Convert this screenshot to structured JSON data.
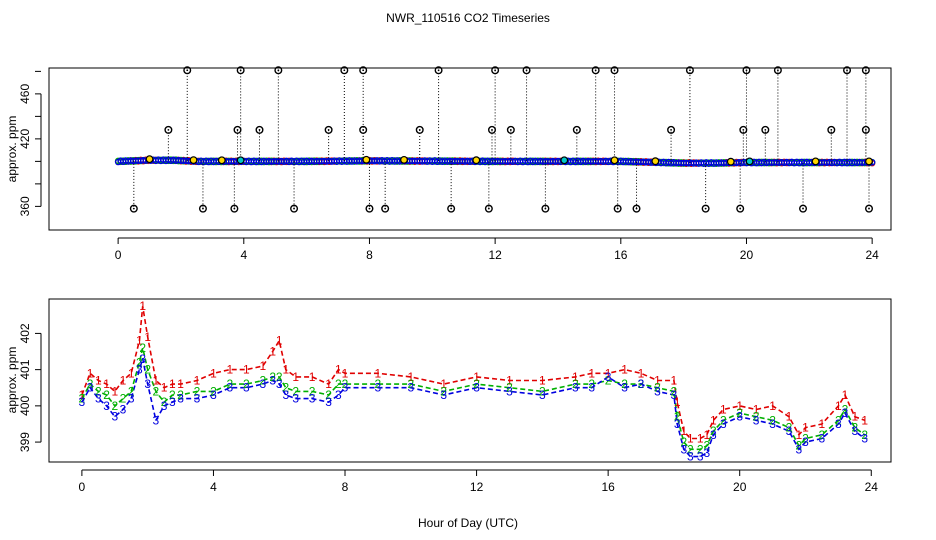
{
  "figure": {
    "title": "NWR_110516  CO2 Timeseries",
    "shared_xlabel": "Hour of Day (UTC)"
  },
  "colors": {
    "axis": "#000000",
    "series1": "#e00000",
    "series2": "#00b000",
    "series3": "#0000e0",
    "flag_fill": "#ffd700",
    "flag_cyan": "#00c8c8",
    "drop": "#000000"
  },
  "chart_data": [
    {
      "type": "scatter",
      "panel": "top",
      "title": "",
      "xlabel": "",
      "ylabel": "approx. ppm",
      "xlim": [
        -2.2,
        24.6
      ],
      "ylim": [
        339,
        483
      ],
      "xticks": [
        0,
        4,
        8,
        12,
        16,
        20,
        24
      ],
      "yticks": [
        360,
        420,
        460
      ],
      "yticklabels": [
        "360",
        "420",
        "460"
      ],
      "baseline": [
        {
          "x": 0.0,
          "y": 400
        },
        {
          "x": 1.0,
          "y": 401
        },
        {
          "x": 1.8,
          "y": 401
        },
        {
          "x": 2.5,
          "y": 400
        },
        {
          "x": 4.0,
          "y": 400
        },
        {
          "x": 6.0,
          "y": 400
        },
        {
          "x": 8.0,
          "y": 400.5
        },
        {
          "x": 12.0,
          "y": 400
        },
        {
          "x": 16.0,
          "y": 400
        },
        {
          "x": 18.0,
          "y": 398.5
        },
        {
          "x": 19.0,
          "y": 398.5
        },
        {
          "x": 20.0,
          "y": 399
        },
        {
          "x": 22.0,
          "y": 399
        },
        {
          "x": 24.0,
          "y": 399
        }
      ],
      "outliers_high": [
        2.2,
        3.9,
        5.1,
        7.2,
        7.8,
        10.2,
        12.0,
        13.0,
        15.2,
        15.8,
        18.2,
        20.0,
        21.0,
        23.2,
        23.8
      ],
      "outliers_high_value": 481,
      "outliers_mid": [
        1.6,
        3.8,
        4.5,
        6.7,
        7.8,
        9.6,
        11.9,
        12.5,
        14.6,
        17.6,
        19.9,
        20.6,
        22.7,
        23.8
      ],
      "outliers_mid_value": 428,
      "outliers_low": [
        0.5,
        2.7,
        3.7,
        5.6,
        8.0,
        8.5,
        10.6,
        11.8,
        13.6,
        15.9,
        16.5,
        18.7,
        19.8,
        21.8,
        23.9
      ],
      "outliers_low_value": 358,
      "flags_near_base": [
        1.0,
        2.4,
        3.3,
        3.9,
        7.9,
        9.1,
        11.4,
        14.2,
        15.8,
        17.1,
        19.5,
        20.1,
        22.2,
        23.9
      ]
    },
    {
      "type": "line",
      "panel": "bottom",
      "title": "",
      "xlabel": "",
      "ylabel": "approx. ppm",
      "xlim": [
        -1.0,
        24.6
      ],
      "ylim": [
        398.45,
        402.95
      ],
      "xticks": [
        0,
        4,
        8,
        12,
        16,
        20,
        24
      ],
      "yticks": [
        399,
        400,
        401,
        402
      ],
      "series": [
        {
          "marker": "1",
          "x": [
            0,
            0.25,
            0.5,
            0.75,
            1,
            1.25,
            1.5,
            1.75,
            1.85,
            2,
            2.25,
            2.5,
            2.75,
            3,
            3.5,
            4,
            4.5,
            5,
            5.5,
            5.8,
            6,
            6.2,
            6.5,
            7,
            7.5,
            7.8,
            8,
            9,
            10,
            11,
            12,
            13,
            14,
            15,
            15.5,
            16,
            16.5,
            17,
            17.5,
            18,
            18.1,
            18.3,
            18.5,
            18.8,
            19,
            19.2,
            19.5,
            20,
            20.5,
            21,
            21.5,
            21.8,
            22,
            22.5,
            23,
            23.2,
            23.5,
            23.8
          ],
          "y": [
            400.3,
            400.9,
            400.7,
            400.6,
            400.4,
            400.7,
            400.9,
            401.8,
            402.75,
            401.9,
            400.7,
            400.5,
            400.6,
            400.6,
            400.7,
            400.9,
            401.0,
            401.0,
            401.1,
            401.5,
            401.8,
            401.0,
            400.8,
            400.8,
            400.6,
            401.0,
            400.9,
            400.9,
            400.8,
            400.6,
            400.8,
            400.7,
            400.7,
            400.8,
            400.9,
            400.9,
            401.0,
            400.9,
            400.7,
            400.7,
            400.1,
            399.3,
            399.1,
            399.1,
            399.2,
            399.6,
            399.9,
            400.0,
            399.9,
            400.0,
            399.7,
            399.2,
            399.4,
            399.5,
            400.0,
            400.3,
            399.7,
            399.6
          ]
        },
        {
          "marker": "2",
          "x": [
            0,
            0.25,
            0.5,
            0.75,
            1,
            1.25,
            1.5,
            1.75,
            1.85,
            2,
            2.25,
            2.5,
            2.75,
            3,
            3.5,
            4,
            4.5,
            5,
            5.5,
            5.8,
            6,
            6.2,
            6.5,
            7,
            7.5,
            7.8,
            8,
            9,
            10,
            11,
            12,
            13,
            14,
            15,
            15.5,
            16,
            16.5,
            17,
            17.5,
            18,
            18.1,
            18.3,
            18.5,
            18.8,
            19,
            19.2,
            19.5,
            20,
            20.5,
            21,
            21.5,
            21.8,
            22,
            22.5,
            23,
            23.2,
            23.5,
            23.8
          ],
          "y": [
            400.2,
            400.6,
            400.4,
            400.3,
            400.0,
            400.2,
            400.4,
            401.2,
            401.6,
            401.0,
            400.4,
            400.1,
            400.3,
            400.3,
            400.4,
            400.4,
            400.6,
            400.6,
            400.7,
            400.8,
            400.8,
            400.5,
            400.4,
            400.4,
            400.3,
            400.6,
            400.6,
            400.6,
            400.6,
            400.4,
            400.6,
            400.5,
            400.4,
            400.6,
            400.6,
            400.7,
            400.6,
            400.6,
            400.5,
            400.4,
            399.7,
            399.0,
            398.8,
            398.8,
            398.9,
            399.3,
            399.6,
            399.8,
            399.7,
            399.6,
            399.4,
            398.9,
            399.1,
            399.2,
            399.6,
            399.9,
            399.4,
            399.2
          ]
        },
        {
          "marker": "3",
          "x": [
            0,
            0.25,
            0.5,
            0.75,
            1,
            1.25,
            1.5,
            1.75,
            1.85,
            2,
            2.25,
            2.5,
            2.75,
            3,
            3.5,
            4,
            4.5,
            5,
            5.5,
            5.8,
            6,
            6.2,
            6.5,
            7,
            7.5,
            7.8,
            8,
            9,
            10,
            11,
            12,
            13,
            14,
            15,
            15.5,
            16,
            16.5,
            17,
            17.5,
            18,
            18.1,
            18.3,
            18.5,
            18.8,
            19,
            19.2,
            19.5,
            20,
            20.5,
            21,
            21.5,
            21.8,
            22,
            22.5,
            23,
            23.2,
            23.5,
            23.8
          ],
          "y": [
            400.1,
            400.5,
            400.2,
            400.0,
            399.7,
            399.9,
            400.2,
            401.0,
            401.3,
            400.6,
            399.6,
            400.0,
            400.1,
            400.2,
            400.2,
            400.3,
            400.5,
            400.5,
            400.6,
            400.7,
            400.6,
            400.3,
            400.2,
            400.2,
            400.1,
            400.3,
            400.5,
            400.5,
            400.5,
            400.3,
            400.5,
            400.4,
            400.3,
            400.5,
            400.5,
            400.8,
            400.5,
            400.6,
            400.4,
            400.3,
            399.5,
            398.8,
            398.6,
            398.6,
            398.7,
            399.2,
            399.5,
            399.7,
            399.6,
            399.5,
            399.3,
            398.8,
            399.0,
            399.1,
            399.5,
            399.8,
            399.3,
            399.1
          ]
        }
      ]
    }
  ]
}
